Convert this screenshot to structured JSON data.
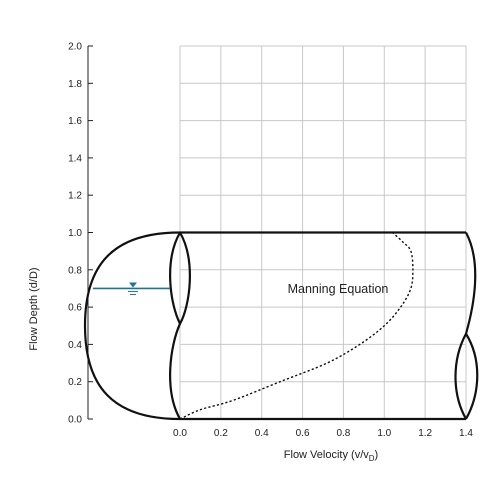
{
  "chart_data": {
    "type": "line",
    "title": "",
    "xlabel": "Flow Velocity (v/v",
    "xlabel_sub": "D",
    "xlabel_tail": ")",
    "ylabel": "Flow Depth (d/D)",
    "xlim": [
      0,
      1.4
    ],
    "ylim": [
      0,
      2.0
    ],
    "x_ticks": [
      "0.0",
      "0.2",
      "0.4",
      "0.6",
      "0.8",
      "1.0",
      "1.2",
      "1.4"
    ],
    "y_ticks": [
      "0.0",
      "0.2",
      "0.4",
      "0.6",
      "0.8",
      "1.0",
      "1.2",
      "1.4",
      "1.6",
      "1.8",
      "2.0"
    ],
    "grid": true,
    "annotation": "Manning Equation",
    "water_level": 0.7,
    "series": [
      {
        "style": "dotted",
        "x": [
          0.0,
          0.1,
          0.26,
          0.49,
          0.72,
          0.88,
          1.0,
          1.08,
          1.13,
          1.14,
          1.13,
          1.09,
          1.04
        ],
        "y": [
          0.0,
          0.05,
          0.1,
          0.2,
          0.3,
          0.4,
          0.5,
          0.6,
          0.7,
          0.8,
          0.9,
          0.95,
          1.0
        ]
      }
    ]
  }
}
